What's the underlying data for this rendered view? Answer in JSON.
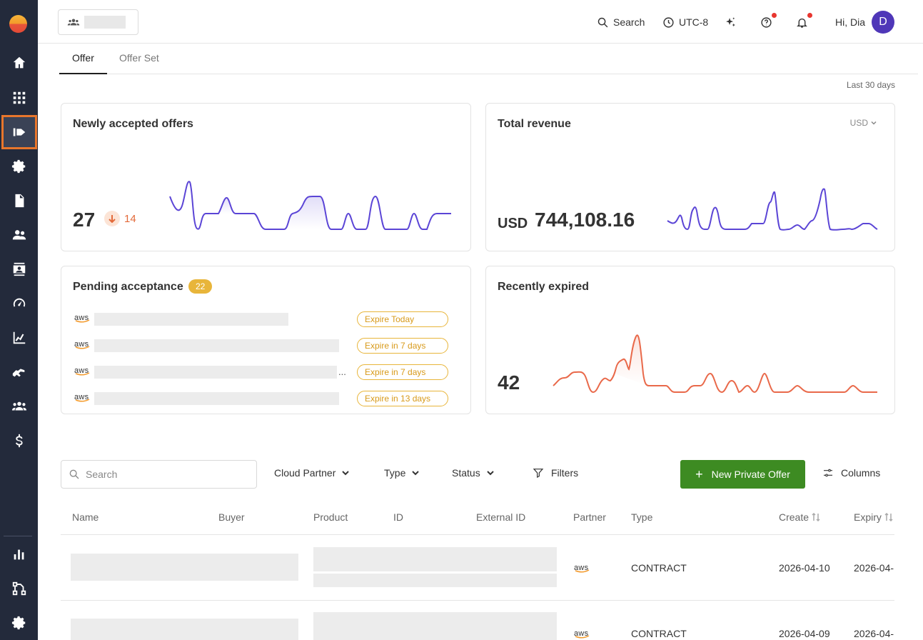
{
  "sidebar": {
    "items": [
      {
        "name": "home-icon"
      },
      {
        "name": "apps-grid-icon"
      },
      {
        "name": "offers-icon",
        "active": true
      },
      {
        "name": "gear-icon"
      },
      {
        "name": "document-icon"
      },
      {
        "name": "users-icon"
      },
      {
        "name": "contacts-icon"
      },
      {
        "name": "speedometer-icon"
      },
      {
        "name": "analytics-icon"
      },
      {
        "name": "handshake-icon"
      },
      {
        "name": "team-icon"
      },
      {
        "name": "dollar-icon"
      },
      {
        "name": "bar-chart-icon"
      },
      {
        "name": "workflow-icon"
      },
      {
        "name": "settings-icon"
      }
    ]
  },
  "header": {
    "search_label": "Search",
    "timezone_label": "UTC-8",
    "greeting": "Hi, Dia",
    "avatar_initial": "D"
  },
  "tabs": [
    {
      "label": "Offer",
      "active": true
    },
    {
      "label": "Offer Set",
      "active": false
    }
  ],
  "date_range": "Last 30 days",
  "cards": {
    "newly_accepted": {
      "title": "Newly accepted offers",
      "value": "27",
      "delta": "14",
      "line_color": "#5b45d6"
    },
    "total_revenue": {
      "title": "Total revenue",
      "currency_select": "USD",
      "currency_prefix": "USD",
      "value": "744,108.16",
      "line_color": "#5b45d6"
    },
    "pending": {
      "title": "Pending acceptance",
      "count": "22",
      "partner_logo_text": "aws",
      "rows": [
        {
          "expire": "Expire Today"
        },
        {
          "expire": "Expire in 7 days"
        },
        {
          "expire": "Expire in 7 days",
          "ellipsis": "..."
        },
        {
          "expire": "Expire in 13 days"
        }
      ]
    },
    "recently_expired": {
      "title": "Recently expired",
      "value": "42",
      "line_color": "#e9694a"
    }
  },
  "filters": {
    "search_placeholder": "Search",
    "cloud_partner": "Cloud Partner",
    "type": "Type",
    "status": "Status",
    "filters_label": "Filters",
    "new_offer_label": "New Private Offer",
    "columns_label": "Columns"
  },
  "table": {
    "headers": [
      "Name",
      "Buyer",
      "Product",
      "ID",
      "External ID",
      "Partner",
      "Type",
      "Create",
      "Expiry"
    ],
    "rows": [
      {
        "partner": "aws",
        "type": "CONTRACT",
        "create": "2026-04-10",
        "expiry": "2026-04-"
      },
      {
        "partner": "aws",
        "type": "CONTRACT",
        "create": "2026-04-09",
        "expiry": "2026-04-"
      }
    ]
  }
}
